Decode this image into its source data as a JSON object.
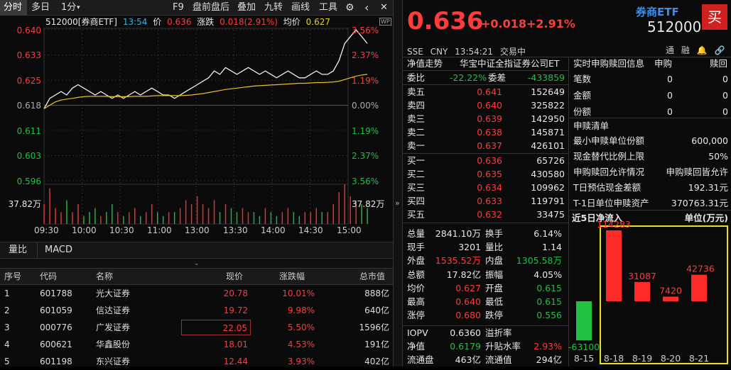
{
  "toolbar": {
    "items": [
      "分时",
      "多日",
      "1分",
      "F9",
      "盘前盘后",
      "叠加",
      "九转",
      "画线",
      "工具"
    ],
    "gear": "⚙",
    "back": "‹",
    "close": "✕"
  },
  "chart_header": {
    "code_name": "512000[券商ETF]",
    "time": "13:54",
    "price_label": "价",
    "price": "0.636",
    "chg_label": "涨跌",
    "chg": "0.018(2.91%)",
    "avg_label": "均价",
    "avg": "0.627",
    "wp": "WP"
  },
  "chart_data": {
    "type": "line",
    "y_labels": [
      "0.640",
      "0.633",
      "0.625",
      "0.618",
      "0.611",
      "0.603",
      "0.596"
    ],
    "pct_labels": [
      "3.56%",
      "2.37%",
      "1.19%",
      "0.00%",
      "1.19%",
      "2.37%",
      "3.56%"
    ],
    "volume_label": "37.82万",
    "x_labels": [
      "09:30",
      "10:00",
      "10:30",
      "11:00",
      "13:00",
      "13:30",
      "14:00",
      "14:30",
      "15:00"
    ],
    "ylim": [
      0.596,
      0.64
    ],
    "prev_close": 0.618,
    "price": [
      0.617,
      0.62,
      0.621,
      0.622,
      0.621,
      0.623,
      0.624,
      0.623,
      0.622,
      0.621,
      0.622,
      0.621,
      0.62,
      0.621,
      0.62,
      0.621,
      0.622,
      0.621,
      0.622,
      0.623,
      0.622,
      0.621,
      0.621,
      0.62,
      0.621,
      0.622,
      0.623,
      0.624,
      0.625,
      0.626,
      0.628,
      0.627,
      0.629,
      0.628,
      0.627,
      0.628,
      0.629,
      0.628,
      0.627,
      0.628,
      0.627,
      0.626,
      0.627,
      0.628,
      0.627,
      0.626,
      0.626,
      0.627,
      0.628,
      0.627,
      0.627,
      0.628,
      0.631,
      0.636,
      0.638,
      0.64,
      0.638,
      0.636
    ],
    "avg": [
      0.617,
      0.618,
      0.619,
      0.6195,
      0.6198,
      0.62,
      0.6203,
      0.6205,
      0.6206,
      0.6206,
      0.6206,
      0.6206,
      0.6205,
      0.6205,
      0.6205,
      0.6205,
      0.6206,
      0.6206,
      0.6206,
      0.6207,
      0.6208,
      0.6208,
      0.6208,
      0.6208,
      0.6208,
      0.6209,
      0.621,
      0.6212,
      0.6214,
      0.6217,
      0.622,
      0.6223,
      0.6226,
      0.6228,
      0.623,
      0.6232,
      0.6234,
      0.6236,
      0.6237,
      0.6238,
      0.6239,
      0.624,
      0.6241,
      0.6242,
      0.6243,
      0.6244,
      0.6244,
      0.6245,
      0.6246,
      0.6246,
      0.6247,
      0.6248,
      0.625,
      0.6255,
      0.626,
      0.6265,
      0.6268,
      0.627
    ],
    "volume": [
      0.5,
      0.9,
      0.4,
      0.3,
      0.6,
      0.3,
      0.5,
      0.2,
      0.3,
      0.4,
      0.2,
      0.3,
      0.5,
      0.3,
      0.2,
      0.3,
      0.4,
      0.2,
      0.3,
      0.5,
      0.3,
      0.2,
      0.3,
      0.3,
      0.4,
      0.6,
      0.5,
      0.7,
      0.5,
      0.4,
      0.6,
      0.3,
      0.5,
      0.4,
      0.3,
      0.4,
      0.3,
      0.3,
      0.2,
      0.4,
      0.3,
      0.2,
      0.3,
      0.4,
      0.3,
      0.2,
      0.3,
      0.3,
      0.4,
      0.3,
      0.3,
      0.5,
      0.8,
      1.0,
      0.7,
      0.6,
      0.5,
      0.4
    ]
  },
  "indicator_tabs": [
    "量比",
    "MACD"
  ],
  "table": {
    "headers": [
      "序号",
      "代码",
      "名称",
      "现价",
      "涨跌幅",
      "总市值"
    ],
    "rows": [
      [
        "1",
        "601788",
        "光大证券",
        "20.78",
        "10.01%",
        "888亿"
      ],
      [
        "2",
        "601059",
        "信达证券",
        "19.72",
        "9.98%",
        "640亿"
      ],
      [
        "3",
        "000776",
        "广发证券",
        "22.05",
        "5.50%",
        "1596亿"
      ],
      [
        "4",
        "600621",
        "华鑫股份",
        "18.01",
        "4.53%",
        "191亿"
      ],
      [
        "5",
        "601198",
        "东兴证券",
        "12.44",
        "3.93%",
        "402亿"
      ]
    ]
  },
  "quote": {
    "price": "0.636",
    "change": "+0.018",
    "change_pct": "+2.91%",
    "name": "券商ETF",
    "code": "512000",
    "buy": "买",
    "market": "SSE",
    "currency": "CNY",
    "time": "13:54:21",
    "status": "交易中",
    "tools": [
      "通",
      "融",
      "🔔",
      "🔗",
      "≡"
    ]
  },
  "orderbook": {
    "title": "净值走势",
    "issuer": "华宝中证全指证券公司ET",
    "wb_label": "委比",
    "wb": "-22.22%",
    "wc_label": "委差",
    "wc": "-433859",
    "asks": [
      [
        "卖五",
        "0.641",
        "152649"
      ],
      [
        "卖四",
        "0.640",
        "325822"
      ],
      [
        "卖三",
        "0.639",
        "142950"
      ],
      [
        "卖二",
        "0.638",
        "145871"
      ],
      [
        "卖一",
        "0.637",
        "426101"
      ]
    ],
    "bids": [
      [
        "买一",
        "0.636",
        "65726"
      ],
      [
        "买二",
        "0.635",
        "430580"
      ],
      [
        "买三",
        "0.634",
        "109962"
      ],
      [
        "买四",
        "0.633",
        "119791"
      ],
      [
        "买五",
        "0.632",
        "33475"
      ]
    ]
  },
  "stats": [
    [
      "总量",
      "2841.10万",
      "换手",
      "6.14%"
    ],
    [
      "现手",
      "3201",
      "量比",
      "1.14"
    ],
    [
      "外盘",
      "1535.52万",
      "内盘",
      "1305.58万"
    ],
    [
      "总额",
      "17.82亿",
      "振幅",
      "4.05%"
    ],
    [
      "均价",
      "0.627",
      "开盘",
      "0.615"
    ],
    [
      "最高",
      "0.640",
      "最低",
      "0.615"
    ],
    [
      "涨停",
      "0.680",
      "跌停",
      "0.556"
    ]
  ],
  "stats2": [
    [
      "IOPV",
      "0.6360",
      "溢折率",
      ""
    ],
    [
      "净值",
      "0.6179",
      "升贴水率",
      "2.93%"
    ],
    [
      "流通盘",
      "463亿",
      "流通值",
      "294亿"
    ]
  ],
  "subscribe": {
    "title": "实时申购赎回信息",
    "col1": "申购",
    "col2": "赎回",
    "rows": [
      [
        "笔数",
        "0",
        "0"
      ],
      [
        "金额",
        "0",
        "0"
      ],
      [
        "份额",
        "0",
        "0"
      ]
    ]
  },
  "creation": {
    "title": "申赎清单",
    "rows": [
      [
        "最小申赎单位份额",
        "600,000"
      ],
      [
        "现金替代比例上限",
        "50%"
      ],
      [
        "申购赎回允许情况",
        "申购赎回皆允许"
      ],
      [
        "T日预估现金差额",
        "192.31元"
      ],
      [
        "T-1日单位申赎资产",
        "370763.31元"
      ]
    ]
  },
  "netflow": {
    "title": "近5日净流入",
    "unit": "单位(万元)",
    "dates": [
      "8-15",
      "8-18",
      "8-19",
      "8-20",
      "8-21"
    ],
    "values": [
      -63100,
      114283,
      31087,
      7420,
      42736
    ],
    "labels": [
      "-63100",
      "114283",
      "31087",
      "7420",
      "42736"
    ]
  }
}
